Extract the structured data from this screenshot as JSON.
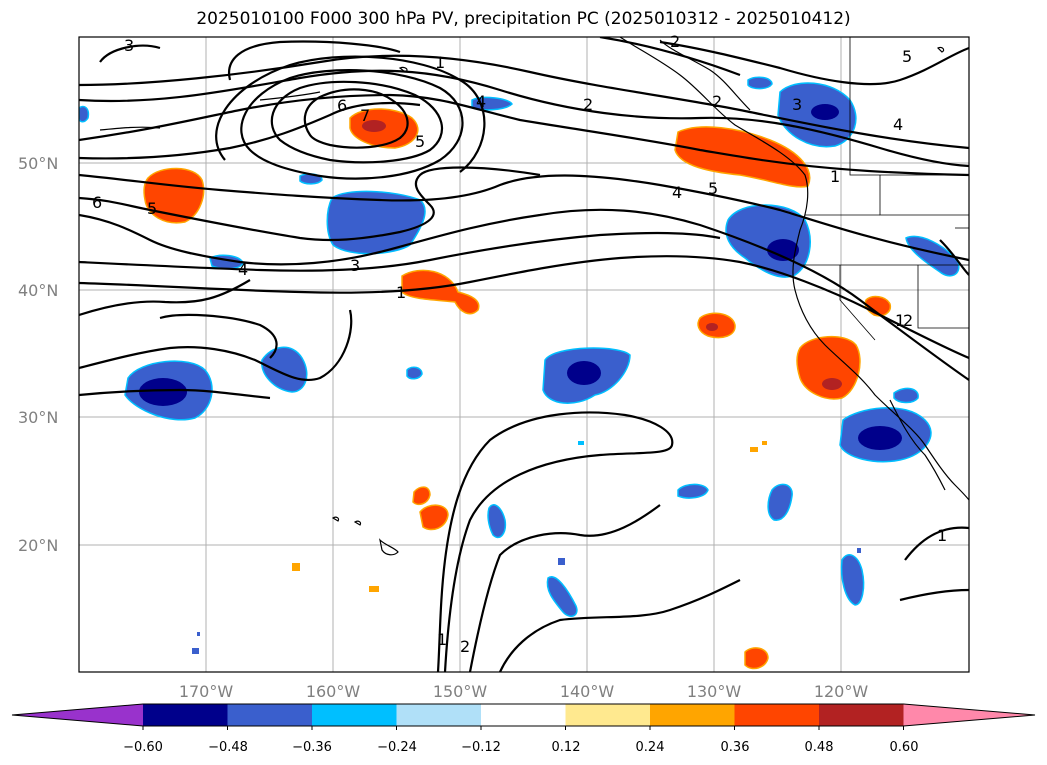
{
  "title": "2025010100 F000 300 hPa PV, precipitation PC (2025010312 - 2025010412)",
  "lat_labels": [
    "50°N",
    "40°N",
    "30°N",
    "20°N"
  ],
  "lon_labels": [
    "170°W",
    "160°W",
    "150°W",
    "140°W",
    "130°W",
    "120°W"
  ],
  "colorbar": {
    "ticks": [
      "−0.60",
      "−0.48",
      "−0.36",
      "−0.24",
      "−0.12",
      "0.12",
      "0.24",
      "0.36",
      "0.48",
      "0.60"
    ],
    "colors": [
      "#9932cc",
      "#00008b",
      "#3a5fcd",
      "#00bfff",
      "#b0e0f8",
      "#ffffff",
      "#ffe98f",
      "#ffa500",
      "#ff4500",
      "#b22222",
      "#ff88aa"
    ]
  },
  "contour_labels": [
    "3",
    "1",
    "2",
    "2",
    "5",
    "6",
    "7",
    "5",
    "4",
    "2",
    "3",
    "4",
    "6",
    "5",
    "4",
    "5",
    "1",
    "4",
    "3",
    "1",
    "1",
    "2",
    "1",
    "2",
    "1"
  ]
}
